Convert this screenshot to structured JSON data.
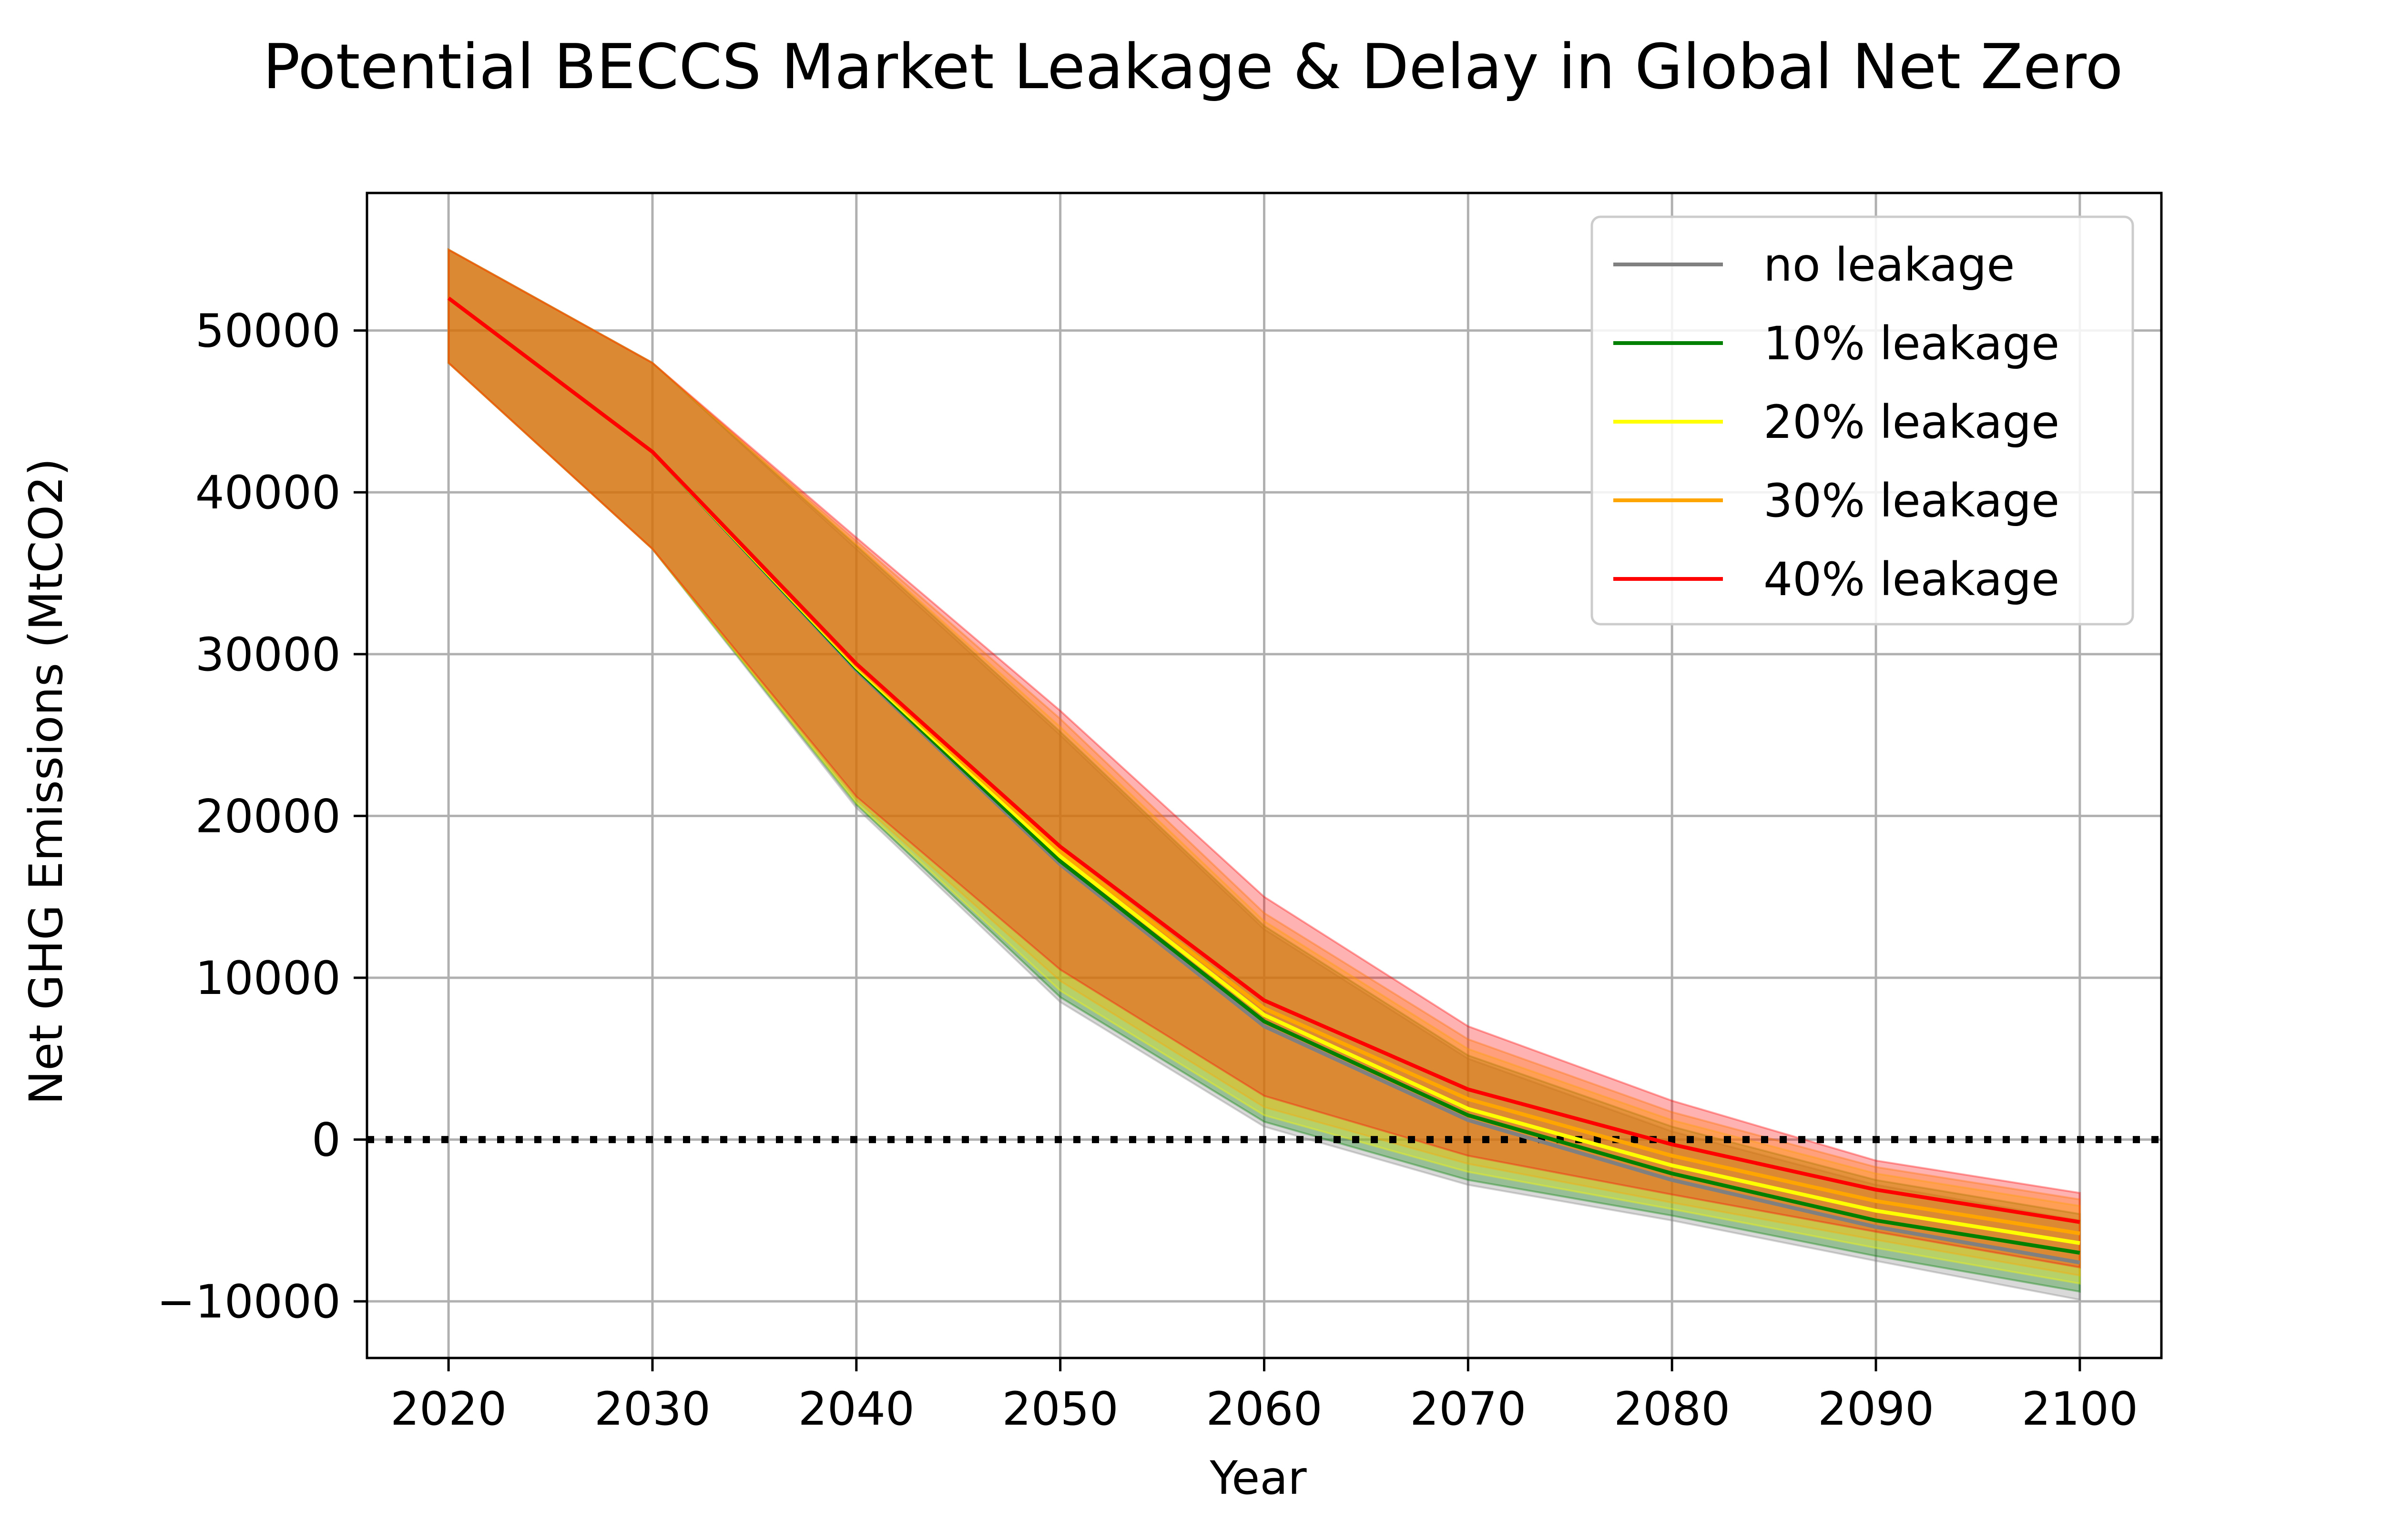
{
  "chart_data": {
    "type": "line",
    "title": "Potential BECCS Market Leakage & Delay in Global Net Zero",
    "xlabel": "Year",
    "ylabel": "Net GHG Emissions (MtCO2)",
    "x": [
      2020,
      2030,
      2040,
      2050,
      2060,
      2070,
      2080,
      2090,
      2100
    ],
    "xlim": [
      2016,
      2104
    ],
    "ylim": [
      -13500,
      58500
    ],
    "x_ticks": [
      "2020",
      "2030",
      "2040",
      "2050",
      "2060",
      "2070",
      "2080",
      "2090",
      "2100"
    ],
    "y_ticks": [
      {
        "value": -10000,
        "label": "−10000"
      },
      {
        "value": 0,
        "label": "0"
      },
      {
        "value": 10000,
        "label": "10000"
      },
      {
        "value": 20000,
        "label": "20000"
      },
      {
        "value": 30000,
        "label": "30000"
      },
      {
        "value": 40000,
        "label": "40000"
      },
      {
        "value": 50000,
        "label": "50000"
      }
    ],
    "grid": true,
    "legend_position": "top-right",
    "reference_line": {
      "y": 0,
      "style": "dotted",
      "color": "#000000"
    },
    "series": [
      {
        "name": "no leakage",
        "color": "#808080",
        "values": [
          52000,
          42500,
          29000,
          17000,
          7000,
          1200,
          -2500,
          -5400,
          -7600
        ],
        "band_lower": [
          48000,
          36500,
          20500,
          8500,
          800,
          -2800,
          -5000,
          -7500,
          -9900
        ],
        "band_upper": [
          55000,
          48000,
          36500,
          25000,
          13000,
          5000,
          500,
          -2800,
          -5000
        ]
      },
      {
        "name": "10% leakage",
        "color": "#008000",
        "values": [
          52000,
          42500,
          29100,
          17200,
          7300,
          1500,
          -2100,
          -5000,
          -7000
        ],
        "band_lower": [
          48000,
          36500,
          20700,
          8800,
          1100,
          -2500,
          -4700,
          -7200,
          -9400
        ],
        "band_upper": [
          55000,
          48000,
          36700,
          25200,
          13200,
          5200,
          800,
          -2500,
          -4600
        ]
      },
      {
        "name": "20% leakage",
        "color": "#ffff00",
        "values": [
          52000,
          42500,
          29200,
          17500,
          7700,
          1900,
          -1600,
          -4400,
          -6400
        ],
        "band_lower": [
          48000,
          36500,
          20800,
          9200,
          1500,
          -2000,
          -4300,
          -6700,
          -8900
        ],
        "band_upper": [
          55000,
          48000,
          36800,
          25500,
          13500,
          5600,
          1200,
          -2100,
          -4100
        ]
      },
      {
        "name": "30% leakage",
        "color": "#ffa500",
        "values": [
          52000,
          42500,
          29300,
          17800,
          8100,
          2500,
          -1000,
          -3800,
          -5800
        ],
        "band_lower": [
          48000,
          36500,
          21000,
          9800,
          2000,
          -1500,
          -3900,
          -6200,
          -8400
        ],
        "band_upper": [
          55000,
          48000,
          37000,
          26000,
          14000,
          6200,
          1700,
          -1700,
          -3700
        ]
      },
      {
        "name": "40% leakage",
        "color": "#ff0000",
        "values": [
          52000,
          42500,
          29400,
          18100,
          8600,
          3100,
          -300,
          -3100,
          -5100
        ],
        "band_lower": [
          48000,
          36500,
          21200,
          10500,
          2700,
          -1000,
          -3400,
          -5700,
          -7900
        ],
        "band_upper": [
          55000,
          48000,
          37200,
          26500,
          15000,
          7000,
          2400,
          -1300,
          -3300
        ]
      }
    ]
  }
}
